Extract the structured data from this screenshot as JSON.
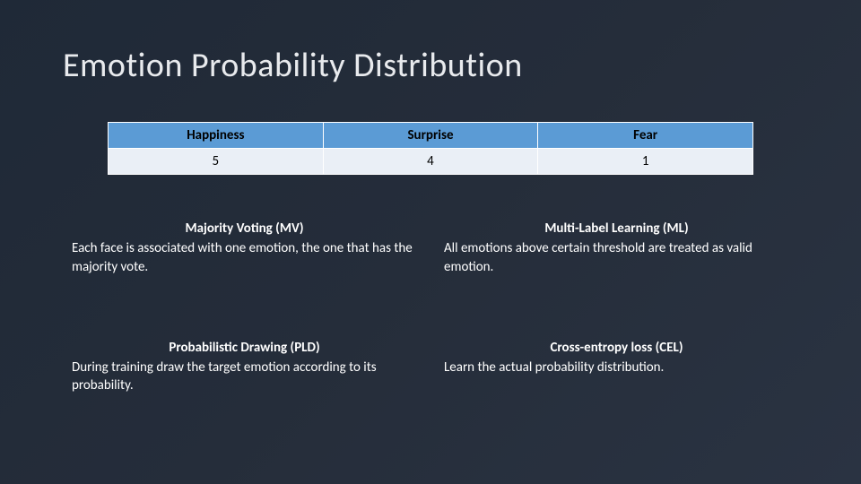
{
  "title": "Emotion Probability Distribution",
  "table": {
    "header_bg": "#5b9bd5",
    "cell_bg": "#eaeff6",
    "border_color": "#ffffff",
    "columns": [
      "Happiness",
      "Surprise",
      "Fear"
    ],
    "row": [
      "5",
      "4",
      "1"
    ],
    "header_fontsize": 15,
    "cell_fontsize": 15
  },
  "methods": {
    "mv": {
      "title": "Majority Voting (MV)",
      "desc": "Each face is associated with one emotion, the one that has the majority vote."
    },
    "ml": {
      "title": "Multi-Label Learning (ML)",
      "desc": "All emotions above certain threshold are treated as valid emotion."
    },
    "pld": {
      "title": "Probabilistic Drawing (PLD)",
      "desc": "During training draw the target emotion according to its probability."
    },
    "cel": {
      "title": "Cross-entropy loss (CEL)",
      "desc": "Learn the actual probability distribution."
    }
  },
  "background_gradient": [
    "#1f2937",
    "#2a3342"
  ],
  "title_color": "#e8eaed",
  "title_fontsize": 38,
  "body_fontsize": 15
}
